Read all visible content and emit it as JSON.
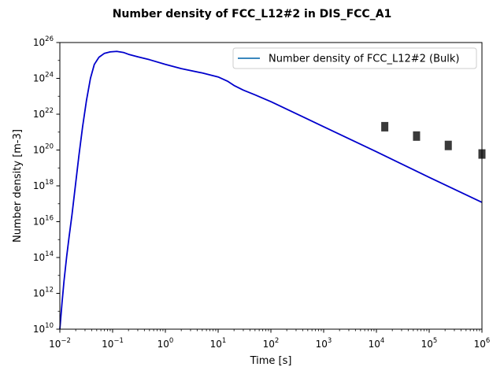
{
  "chart_data": {
    "type": "line",
    "title": "Number density of FCC_L12#2 in DIS_FCC_A1",
    "xlabel": "Time [s]",
    "ylabel": "Number density [m-3]",
    "x_scale": "log",
    "y_scale": "log",
    "xlim": [
      0.01,
      1000000
    ],
    "ylim": [
      10000000000.0,
      1e+26
    ],
    "x_ticks": [
      {
        "base": "10",
        "exp": "−2"
      },
      {
        "base": "10",
        "exp": "−1"
      },
      {
        "base": "10",
        "exp": "0"
      },
      {
        "base": "10",
        "exp": "1"
      },
      {
        "base": "10",
        "exp": "2"
      },
      {
        "base": "10",
        "exp": "3"
      },
      {
        "base": "10",
        "exp": "4"
      },
      {
        "base": "10",
        "exp": "5"
      },
      {
        "base": "10",
        "exp": "6"
      }
    ],
    "y_ticks": [
      {
        "base": "10",
        "exp": "10"
      },
      {
        "base": "10",
        "exp": "12"
      },
      {
        "base": "10",
        "exp": "14"
      },
      {
        "base": "10",
        "exp": "16"
      },
      {
        "base": "10",
        "exp": "18"
      },
      {
        "base": "10",
        "exp": "20"
      },
      {
        "base": "10",
        "exp": "22"
      },
      {
        "base": "10",
        "exp": "24"
      },
      {
        "base": "10",
        "exp": "26"
      }
    ],
    "grid": false,
    "legend_position": "top-right",
    "series": [
      {
        "name": "Number density of FCC_L12#2 (Bulk)",
        "color": "#0000cc",
        "legend_color": "#1f77b4",
        "x": [
          0.01,
          0.011,
          0.012,
          0.0135,
          0.015,
          0.017,
          0.02,
          0.023,
          0.027,
          0.032,
          0.038,
          0.045,
          0.055,
          0.07,
          0.09,
          0.12,
          0.16,
          0.2,
          0.3,
          0.5,
          1,
          2,
          5,
          10,
          15,
          20,
          30,
          50,
          100,
          1000,
          10000,
          100000,
          1000000
        ],
        "y": [
          10000000000.0,
          300000000000.0,
          5000000000000.0,
          120000000000000.0,
          1500000000000000.0,
          2.5e+16,
          1.5e+18,
          5e+19,
          2e+21,
          6e+22,
          1e+24,
          6e+24,
          1.5e+25,
          2.5e+25,
          3e+25,
          3.2e+25,
          2.8e+25,
          2.2e+25,
          1.6e+25,
          1.1e+25,
          6e+24,
          3.5e+24,
          2e+24,
          1.2e+24,
          7e+23,
          4e+23,
          2.2e+23,
          1.2e+23,
          5e+22,
          2e+21,
          8e+19,
          3e+18,
          1.2e+17
        ]
      },
      {
        "name": "",
        "type": "scatter",
        "color": "#3a3a3a",
        "x": [
          14400,
          57600,
          230000,
          1000000
        ],
        "y": [
          2e+21,
          6e+20,
          1.8e+20,
          6e+19
        ]
      }
    ]
  }
}
